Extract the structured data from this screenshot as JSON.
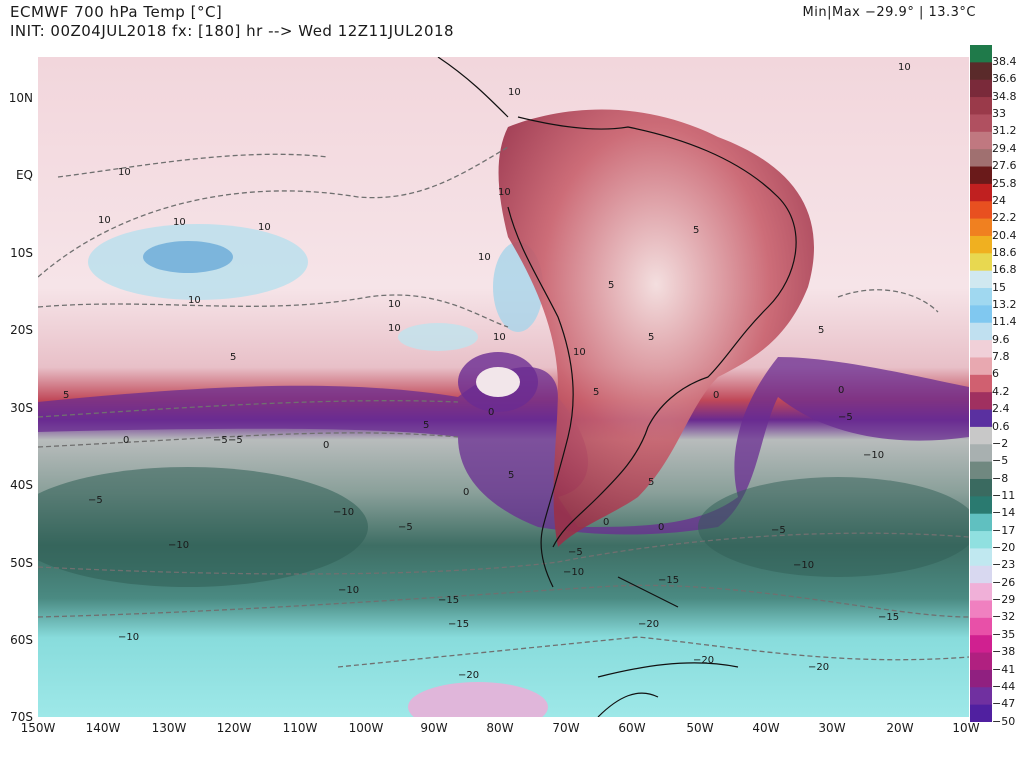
{
  "header": {
    "title": "ECMWF 700 hPa Temp [°C]",
    "init": "INIT: 00Z04JUL2018 fx: [180] hr --> Wed 12Z11JUL2018",
    "minmax": "Min|Max −29.9° | 13.3°C"
  },
  "axes": {
    "lat_labels": [
      "10N",
      "EQ",
      "10S",
      "20S",
      "30S",
      "40S",
      "50S",
      "60S",
      "70S"
    ],
    "lon_labels": [
      "150W",
      "140W",
      "130W",
      "120W",
      "110W",
      "100W",
      "90W",
      "80W",
      "70W",
      "60W",
      "50W",
      "40W",
      "30W",
      "20W",
      "10W"
    ]
  },
  "colorbar": {
    "labels": [
      "38.4",
      "36.6",
      "34.8",
      "33",
      "31.2",
      "29.4",
      "27.6",
      "25.8",
      "24",
      "22.2",
      "20.4",
      "18.6",
      "16.8",
      "15",
      "13.2",
      "11.4",
      "9.6",
      "7.8",
      "6",
      "4.2",
      "2.4",
      "0.6",
      "−2",
      "−5",
      "−8",
      "−11",
      "−14",
      "−17",
      "−20",
      "−23",
      "−26",
      "−29",
      "−32",
      "−35",
      "−38",
      "−41",
      "−44",
      "−47",
      "−50"
    ],
    "colors": [
      "#1f7a4a",
      "#5a2a2a",
      "#7a2a3a",
      "#9a3a4a",
      "#b05060",
      "#c07880",
      "#a07070",
      "#6a1a1a",
      "#c02020",
      "#e85020",
      "#f08020",
      "#f0b020",
      "#e8d850",
      "#d0e8f0",
      "#a0d8f0",
      "#80c8f0",
      "#c0e0f0",
      "#f0d0d8",
      "#e8a8b0",
      "#d06070",
      "#a03060",
      "#5a30a0",
      "#c8c8c8",
      "#a8b0b0",
      "#708880",
      "#3a6a60",
      "#2a7a70",
      "#60c0c0",
      "#90e0e0",
      "#c0e8f0",
      "#d8d8f0",
      "#f0b0d8",
      "#f080c0",
      "#e850a8",
      "#d02090",
      "#b02080",
      "#902080",
      "#7030a0",
      "#5020a0"
    ]
  },
  "contour_labels": [
    "10",
    "10",
    "10",
    "10",
    "10",
    "10",
    "10",
    "10",
    "10",
    "10",
    "10",
    "10",
    "10",
    "5",
    "5",
    "5",
    "5",
    "5",
    "5",
    "5",
    "5",
    "5",
    "5",
    "0",
    "0",
    "0",
    "0",
    "0",
    "0",
    "0",
    "0",
    "−5",
    "−5",
    "−5",
    "−5",
    "−5",
    "−5",
    "−5",
    "−10",
    "−10",
    "−10",
    "−10",
    "−10",
    "−10",
    "−10",
    "−15",
    "−15",
    "−15",
    "−15",
    "−20",
    "−20",
    "−20",
    "−20"
  ]
}
